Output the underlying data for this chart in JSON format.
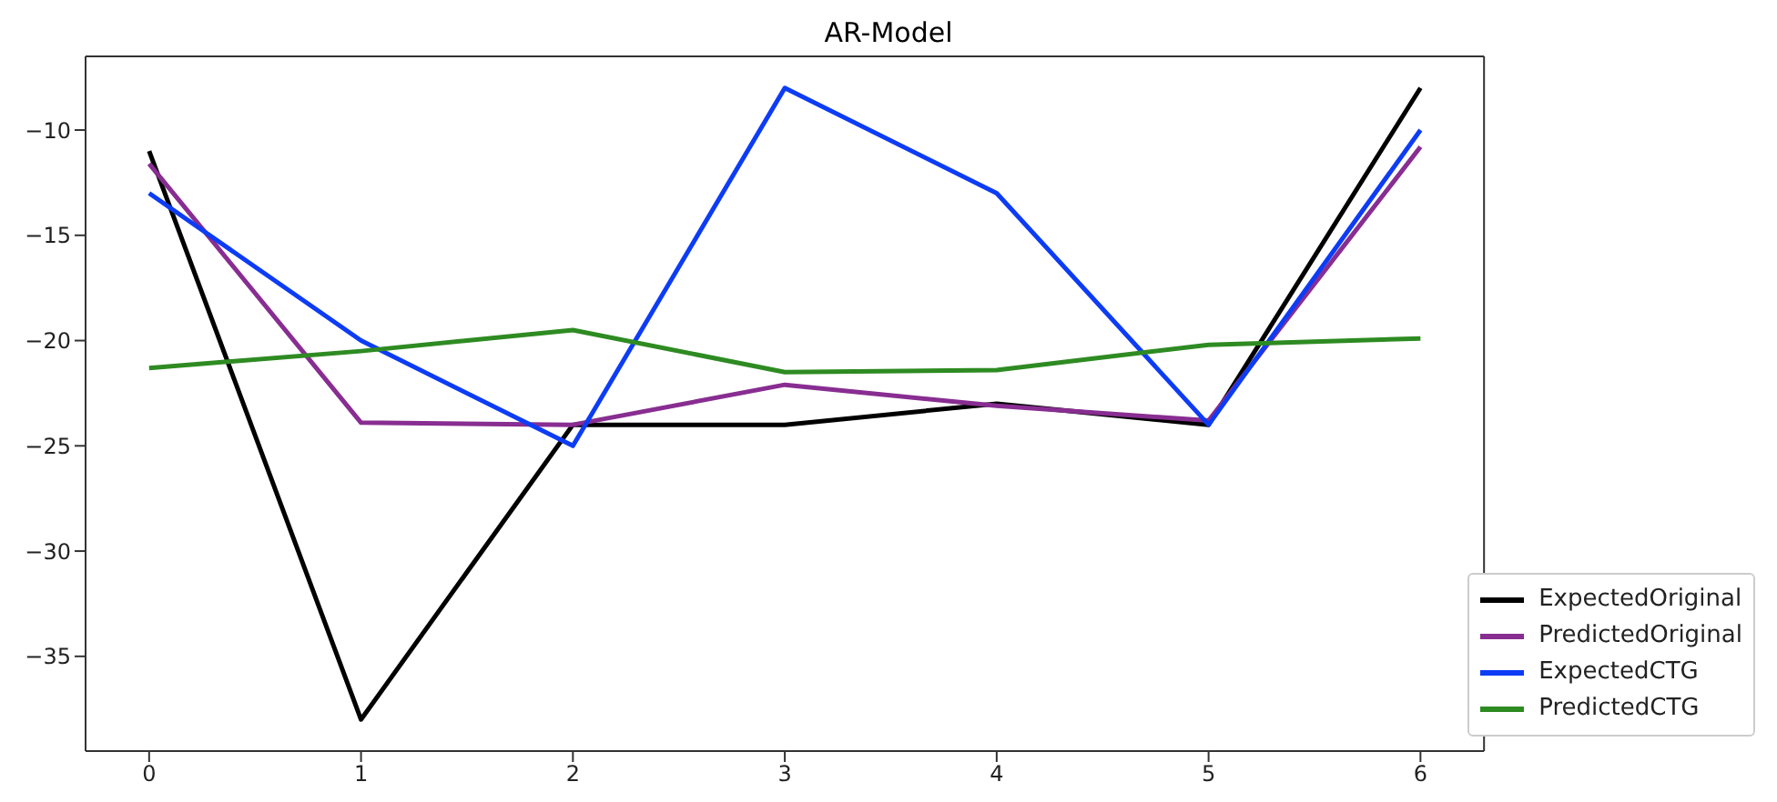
{
  "chart_data": {
    "type": "line",
    "title": "AR-Model",
    "x": [
      0,
      1,
      2,
      3,
      4,
      5,
      6
    ],
    "series": [
      {
        "name": "ExpectedOriginal",
        "color": "#000000",
        "values": [
          -11,
          -38,
          -24,
          -24,
          -23,
          -24,
          -8
        ]
      },
      {
        "name": "PredictedOriginal",
        "color": "#882d91",
        "values": [
          -11.6,
          -23.9,
          -24,
          -22.1,
          -23.1,
          -23.8,
          -10.8
        ]
      },
      {
        "name": "ExpectedCTG",
        "color": "#0d3cf5",
        "values": [
          -13,
          -20,
          -25,
          -8,
          -13,
          -24,
          -10
        ]
      },
      {
        "name": "PredictedCTG",
        "color": "#2e8b22",
        "values": [
          -21.3,
          -20.5,
          -19.5,
          -21.5,
          -21.4,
          -20.2,
          -19.9
        ]
      }
    ],
    "xlim": [
      -0.3,
      6.3
    ],
    "xticks": [
      0,
      1,
      2,
      3,
      4,
      5,
      6
    ],
    "ylim": [
      -39.5,
      -6.5
    ],
    "yticks": [
      -35,
      -30,
      -25,
      -20,
      -15,
      -10
    ],
    "grid": false,
    "legend": "bottom right",
    "marker": "none",
    "line_style": "solid"
  }
}
